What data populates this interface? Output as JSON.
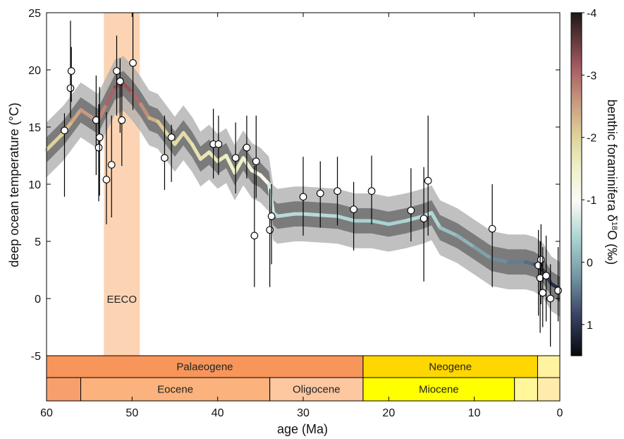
{
  "chart_data": {
    "type": "scatter",
    "xlabel": "age (Ma)",
    "ylabel": "deep ocean temperature (°C)",
    "xlim": [
      60,
      0
    ],
    "ylim": [
      -5,
      25
    ],
    "x_ticks": [
      "60",
      "50",
      "40",
      "30",
      "20",
      "10",
      "0"
    ],
    "y_ticks": [
      "-5",
      "0",
      "5",
      "10",
      "15",
      "20",
      "25"
    ],
    "annotation": "EECO",
    "eeco_range": [
      53.3,
      49.1
    ],
    "colorbar": {
      "label_main": "benthic foraminifera δ",
      "label_sup": "18",
      "label_end": "O (‰)",
      "range": [
        -4,
        1.5
      ],
      "ticks": [
        "-4",
        "-3",
        "-2",
        "-1",
        "0",
        "1"
      ]
    },
    "curve": {
      "x": [
        60,
        58,
        57,
        56,
        55,
        54,
        53,
        52,
        51,
        50,
        49,
        48,
        47,
        46,
        45,
        44,
        43,
        42,
        41,
        40,
        39,
        38,
        37,
        36,
        35,
        34,
        33.5,
        33,
        32,
        31,
        30,
        28,
        26,
        24,
        22,
        20,
        18,
        16,
        15,
        14,
        12,
        10,
        8,
        6,
        4,
        3,
        2,
        1,
        0
      ],
      "y": [
        13,
        14.5,
        15.5,
        16.5,
        16,
        15.5,
        17,
        18.5,
        18.8,
        18,
        17,
        15.8,
        15.5,
        14.5,
        13.5,
        14.5,
        13.5,
        12.2,
        12.8,
        12,
        12.5,
        11,
        12.3,
        11.2,
        10.8,
        10,
        7.5,
        7.2,
        7.3,
        7.4,
        7.4,
        7.3,
        7.2,
        6.8,
        6.8,
        6.5,
        6.8,
        7.2,
        7.5,
        6.2,
        5.5,
        4.5,
        3.5,
        3.2,
        3.2,
        3,
        2.5,
        1.3,
        0.8
      ],
      "d18o": [
        -1.9,
        -2.1,
        -2.3,
        -2.5,
        -2.5,
        -2.5,
        -2.8,
        -3.1,
        -3.2,
        -3.0,
        -2.8,
        -2.4,
        -2.2,
        -2.0,
        -1.8,
        -1.9,
        -1.8,
        -1.7,
        -1.7,
        -1.6,
        -1.6,
        -1.4,
        -1.6,
        -1.3,
        -1.1,
        -1.0,
        -0.6,
        -0.6,
        -0.6,
        -0.6,
        -0.6,
        -0.6,
        -0.6,
        -0.5,
        -0.5,
        -0.5,
        -0.5,
        -0.6,
        -0.7,
        -0.4,
        -0.3,
        -0.2,
        0.0,
        0.1,
        0.2,
        0.3,
        0.5,
        0.8,
        1.0
      ]
    },
    "points": [
      {
        "x": 57.9,
        "y": 14.7,
        "lo": 8.9,
        "hi": 16.2
      },
      {
        "x": 57.2,
        "y": 18.4,
        "lo": 15.8,
        "hi": 24.3
      },
      {
        "x": 57.1,
        "y": 19.9,
        "lo": 17.2,
        "hi": 22.0
      },
      {
        "x": 54.2,
        "y": 15.6,
        "lo": 10.8,
        "hi": 19.5
      },
      {
        "x": 53.9,
        "y": 13.2,
        "lo": 8.5,
        "hi": 17.0
      },
      {
        "x": 53.8,
        "y": 14.1,
        "lo": 9.0,
        "hi": 18.5
      },
      {
        "x": 53.0,
        "y": 10.4,
        "lo": 6.5,
        "hi": 16.3
      },
      {
        "x": 52.4,
        "y": 11.7,
        "lo": 7.1,
        "hi": 16.0
      },
      {
        "x": 51.8,
        "y": 19.9,
        "lo": 16.0,
        "hi": 23.0
      },
      {
        "x": 51.4,
        "y": 19.0,
        "lo": 14.5,
        "hi": 21.0
      },
      {
        "x": 51.2,
        "y": 15.6,
        "lo": 11.6,
        "hi": 18.8
      },
      {
        "x": 49.9,
        "y": 20.6,
        "lo": 16.5,
        "hi": 25.0
      },
      {
        "x": 46.2,
        "y": 12.3,
        "lo": 9.5,
        "hi": 16.0
      },
      {
        "x": 45.4,
        "y": 14.1,
        "lo": 10.2,
        "hi": 15.2
      },
      {
        "x": 40.5,
        "y": 13.5,
        "lo": 10.5,
        "hi": 16.6
      },
      {
        "x": 39.9,
        "y": 13.5,
        "lo": 10.8,
        "hi": 16.0
      },
      {
        "x": 37.9,
        "y": 12.3,
        "lo": 9.2,
        "hi": 15.4
      },
      {
        "x": 36.6,
        "y": 13.2,
        "lo": 10.5,
        "hi": 16.0
      },
      {
        "x": 35.7,
        "y": 5.5,
        "lo": 1.0,
        "hi": 11.6
      },
      {
        "x": 35.5,
        "y": 12.0,
        "lo": 8.8,
        "hi": 16.0
      },
      {
        "x": 33.9,
        "y": 6.0,
        "lo": 1.0,
        "hi": 9.6
      },
      {
        "x": 33.7,
        "y": 7.2,
        "lo": 3.0,
        "hi": 10.0
      },
      {
        "x": 30.0,
        "y": 8.9,
        "lo": 5.5,
        "hi": 12.4
      },
      {
        "x": 28.0,
        "y": 9.2,
        "lo": 6.2,
        "hi": 12.0
      },
      {
        "x": 26.0,
        "y": 9.4,
        "lo": 6.4,
        "hi": 12.4
      },
      {
        "x": 24.1,
        "y": 7.8,
        "lo": 4.2,
        "hi": 10.2
      },
      {
        "x": 22.0,
        "y": 9.4,
        "lo": 6.5,
        "hi": 12.5
      },
      {
        "x": 17.4,
        "y": 7.7,
        "lo": 5.0,
        "hi": 11.4
      },
      {
        "x": 15.9,
        "y": 7.0,
        "lo": 1.5,
        "hi": 11.5
      },
      {
        "x": 15.4,
        "y": 10.3,
        "lo": 5.5,
        "hi": 16.0
      },
      {
        "x": 7.9,
        "y": 6.1,
        "lo": 1.0,
        "hi": 10.0
      },
      {
        "x": 2.5,
        "y": 2.9,
        "lo": -1.5,
        "hi": 6.0
      },
      {
        "x": 2.2,
        "y": 3.4,
        "lo": -0.5,
        "hi": 6.5
      },
      {
        "x": 2.3,
        "y": 1.8,
        "lo": -3.0,
        "hi": 5.0
      },
      {
        "x": 2.0,
        "y": 0.5,
        "lo": -2.5,
        "hi": 4.5
      },
      {
        "x": 1.6,
        "y": 2.0,
        "lo": -2.0,
        "hi": 5.5
      },
      {
        "x": 1.1,
        "y": 0.0,
        "lo": -4.2,
        "hi": 3.0
      },
      {
        "x": 0.2,
        "y": 0.7,
        "lo": -2.0,
        "hi": 4.5
      }
    ],
    "periods": [
      {
        "name": "Palaeogene",
        "start": 60,
        "end": 23,
        "color": "#f8955a"
      },
      {
        "name": "Neogene",
        "start": 23,
        "end": 2.6,
        "color": "#ffd700"
      },
      {
        "name": "",
        "start": 2.6,
        "end": 0,
        "color": "#fff2a0"
      }
    ],
    "epochs": [
      {
        "name": "",
        "start": 60,
        "end": 56,
        "color": "#f7a06c"
      },
      {
        "name": "Eocene",
        "start": 56,
        "end": 33.9,
        "color": "#fbb27c"
      },
      {
        "name": "Oligocene",
        "start": 33.9,
        "end": 23,
        "color": "#fdc7a0"
      },
      {
        "name": "Miocene",
        "start": 23,
        "end": 5.3,
        "color": "#ffff00"
      },
      {
        "name": "",
        "start": 5.3,
        "end": 2.6,
        "color": "#fff799"
      },
      {
        "name": "",
        "start": 2.6,
        "end": 0,
        "color": "#ffecad"
      }
    ],
    "colors": {
      "eeco": "#fcd4b3",
      "band_outer": "#b0b0b0",
      "band_inner": "#6e6e6e",
      "bar_border": "#000000"
    }
  }
}
